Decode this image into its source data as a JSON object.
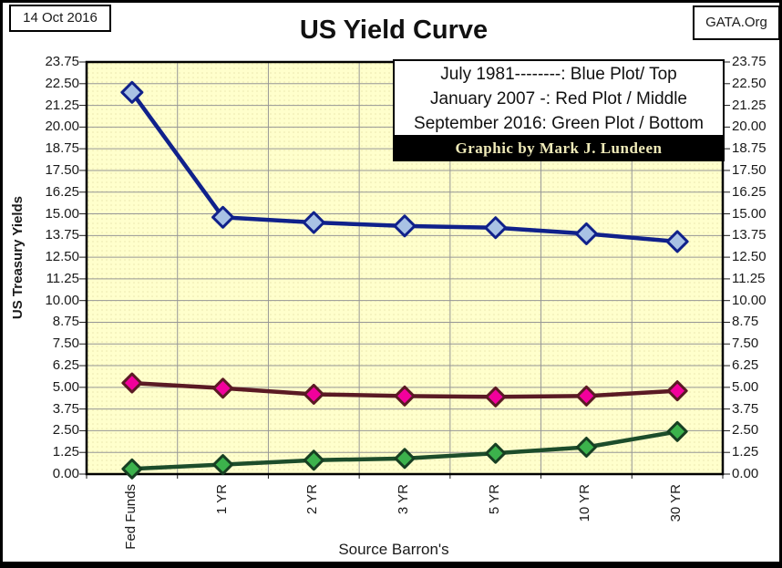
{
  "header": {
    "date": "14 Oct 2016",
    "site": "GATA.Org",
    "title": "US Yield Curve"
  },
  "legend": {
    "line1": "July 1981--------:  Blue Plot/ Top",
    "line2": "January 2007 -: Red Plot / Middle",
    "line3": "September 2016: Green Plot / Bottom",
    "credit": "Graphic by Mark J. Lundeen"
  },
  "axes": {
    "y_title": "US Treasury Yields",
    "x_title": "Source Barron's"
  },
  "colors": {
    "plot_bg": "#ffffcc",
    "plot_bg_dot": "#ebe7ae",
    "gridline": "#969696",
    "axis_border": "#000000",
    "tick": "#1a1a1a",
    "credit_fg": "#efeab8",
    "credit_bg": "#000000"
  },
  "chart_data": {
    "type": "line",
    "title": "US Yield Curve",
    "xlabel": "Source Barron's",
    "ylabel": "US Treasury Yields",
    "categories": [
      "Fed Funds",
      "1 YR",
      "2 YR",
      "3 YR",
      "5 YR",
      "10 YR",
      "30 YR"
    ],
    "ylim": [
      0,
      23.75
    ],
    "ytick_step": 1.25,
    "ytick_format_decimals": 2,
    "grid": true,
    "legend_position": "top-right",
    "series": [
      {
        "name": "July 1981",
        "label": "Blue Plot/ Top",
        "line_color": "#10218b",
        "marker_fill": "#a9c2e4",
        "marker_stroke": "#10218b",
        "marker_radius": 11,
        "values": [
          22.0,
          14.8,
          14.5,
          14.3,
          14.2,
          13.85,
          13.4
        ]
      },
      {
        "name": "January 2007",
        "label": "Red Plot / Middle",
        "line_color": "#5a1a24",
        "marker_fill": "#f2009c",
        "marker_stroke": "#5a1a24",
        "marker_radius": 10,
        "values": [
          5.25,
          4.95,
          4.6,
          4.5,
          4.45,
          4.5,
          4.8
        ]
      },
      {
        "name": "September 2016",
        "label": "Green Plot / Bottom",
        "line_color": "#1d4d2b",
        "marker_fill": "#3cb24c",
        "marker_stroke": "#173f22",
        "marker_radius": 10,
        "values": [
          0.3,
          0.55,
          0.8,
          0.9,
          1.2,
          1.55,
          2.45
        ]
      }
    ]
  }
}
